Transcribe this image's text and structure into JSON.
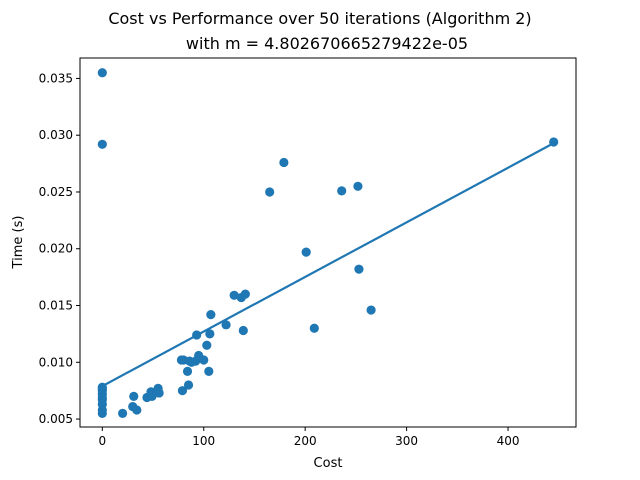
{
  "chart_data": {
    "type": "scatter",
    "title": "Cost vs Performance over 50 iterations (Algorithm 2)",
    "subtitle": "with m = 4.802670665279422e-05",
    "xlabel": "Cost",
    "ylabel": "Time (s)",
    "xlim": [
      -22,
      467
    ],
    "ylim": [
      0.0043,
      0.0368
    ],
    "xticks": [
      0,
      100,
      200,
      300,
      400
    ],
    "xtick_labels": [
      "0",
      "100",
      "200",
      "300",
      "400"
    ],
    "yticks": [
      0.005,
      0.01,
      0.015,
      0.02,
      0.025,
      0.03,
      0.035
    ],
    "ytick_labels": [
      "0.005",
      "0.010",
      "0.015",
      "0.020",
      "0.025",
      "0.030",
      "0.035"
    ],
    "grid": false,
    "colors": {
      "points": "#1f77b4",
      "line": "#1f77b4"
    },
    "fit_line": {
      "x": [
        0,
        445
      ],
      "y": [
        0.0079,
        0.0293
      ]
    },
    "points": {
      "x": [
        0,
        0,
        0,
        0,
        0,
        0,
        0,
        0,
        0,
        0,
        0,
        20,
        30,
        31,
        34,
        44,
        48,
        49,
        55,
        55,
        56,
        78,
        79,
        80,
        84,
        85,
        86,
        88,
        92,
        93,
        95,
        100,
        103,
        105,
        106,
        107,
        122,
        130,
        137,
        139,
        141,
        165,
        179,
        201,
        209,
        236,
        252,
        253,
        265,
        445
      ],
      "y": [
        0.0355,
        0.0292,
        0.0078,
        0.0077,
        0.0075,
        0.0072,
        0.0069,
        0.0067,
        0.0063,
        0.0058,
        0.0055,
        0.0055,
        0.0061,
        0.007,
        0.0058,
        0.0069,
        0.0074,
        0.007,
        0.0077,
        0.0075,
        0.0073,
        0.0102,
        0.0075,
        0.0102,
        0.0092,
        0.008,
        0.0101,
        0.01,
        0.0101,
        0.0124,
        0.0106,
        0.0102,
        0.0115,
        0.0092,
        0.0125,
        0.0142,
        0.0133,
        0.0159,
        0.0157,
        0.0128,
        0.016,
        0.025,
        0.0276,
        0.0197,
        0.013,
        0.0251,
        0.0255,
        0.0182,
        0.0146,
        0.0294
      ]
    }
  }
}
